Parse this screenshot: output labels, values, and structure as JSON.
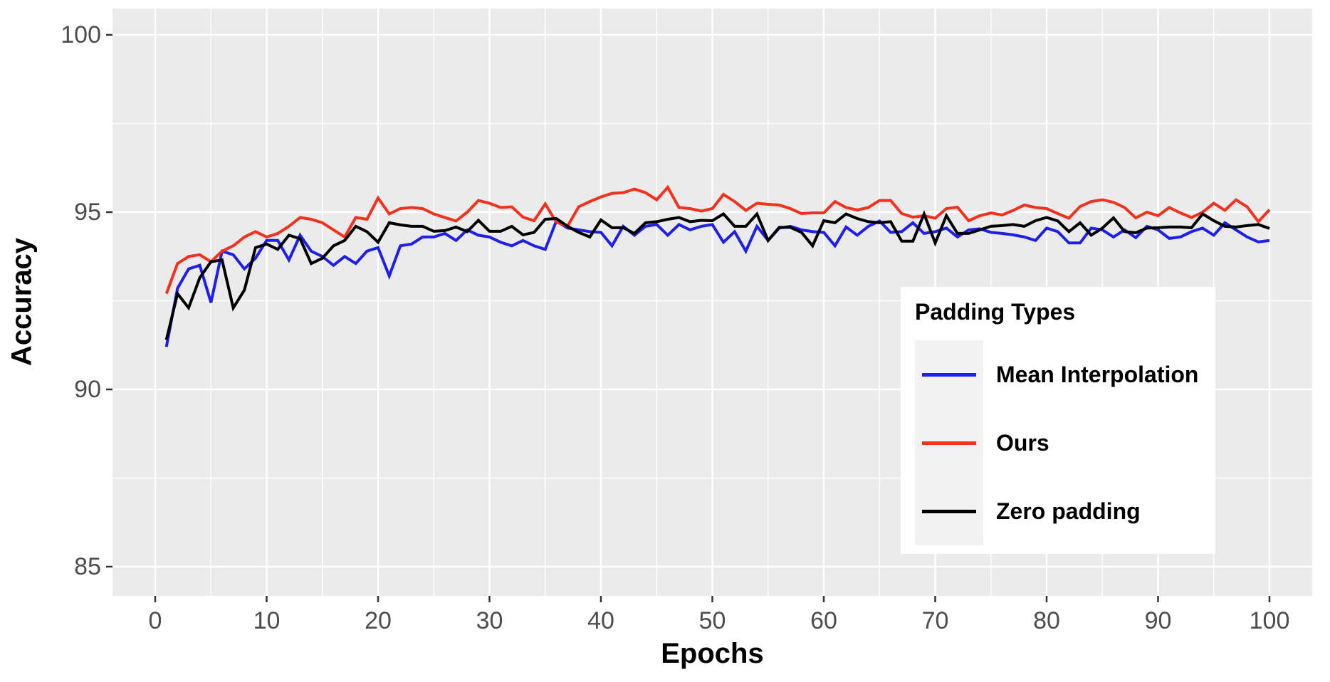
{
  "figure": {
    "background_color": "#ffffff",
    "panel_background_color": "#ebebeb",
    "grid_color": "#ffffff",
    "tick_label_color": "#4d4d4d",
    "axis_title_color": "#000000"
  },
  "legend": {
    "title": "Padding Types",
    "position": "inside-right",
    "background_color": "#ffffff",
    "key_background_color": "#f2f2f2",
    "items": [
      {
        "label": "Mean Interpolation",
        "color": "#1f1feb"
      },
      {
        "label": "Ours",
        "color": "#f5301d"
      },
      {
        "label": "Zero padding",
        "color": "#000000"
      }
    ]
  },
  "chart_data": {
    "type": "line",
    "title": "",
    "xlabel": "Epochs",
    "ylabel": "Accuracy",
    "xlim": [
      -3.8,
      103.8
    ],
    "ylim": [
      84.2,
      100.7
    ],
    "x_ticks": [
      0,
      10,
      20,
      30,
      40,
      50,
      60,
      70,
      80,
      90,
      100
    ],
    "y_ticks": [
      85,
      90,
      95,
      100
    ],
    "x_minor_ticks": [
      5,
      15,
      25,
      35,
      45,
      55,
      65,
      75,
      85,
      95
    ],
    "y_minor_ticks": [
      87.5,
      92.5,
      97.5
    ],
    "grid": true,
    "legend_position": "inside-right",
    "x": [
      1,
      2,
      3,
      4,
      5,
      6,
      7,
      8,
      9,
      10,
      11,
      12,
      13,
      14,
      15,
      16,
      17,
      18,
      19,
      20,
      21,
      22,
      23,
      24,
      25,
      26,
      27,
      28,
      29,
      30,
      31,
      32,
      33,
      34,
      35,
      36,
      37,
      38,
      39,
      40,
      41,
      42,
      43,
      44,
      45,
      46,
      47,
      48,
      49,
      50,
      51,
      52,
      53,
      54,
      55,
      56,
      57,
      58,
      59,
      60,
      61,
      62,
      63,
      64,
      65,
      66,
      67,
      68,
      69,
      70,
      71,
      72,
      73,
      74,
      75,
      76,
      77,
      78,
      79,
      80,
      81,
      82,
      83,
      84,
      85,
      86,
      87,
      88,
      89,
      90,
      91,
      92,
      93,
      94,
      95,
      96,
      97,
      98,
      99,
      100
    ],
    "series": [
      {
        "name": "Mean Interpolation",
        "color": "#1f1feb",
        "values": [
          91.2,
          92.85,
          93.4,
          93.5,
          92.45,
          93.9,
          93.8,
          93.4,
          93.7,
          94.2,
          94.2,
          93.65,
          94.35,
          93.9,
          93.75,
          93.5,
          93.75,
          93.55,
          93.9,
          94.0,
          93.2,
          94.05,
          94.1,
          94.3,
          94.3,
          94.4,
          94.2,
          94.5,
          94.35,
          94.3,
          94.15,
          94.05,
          94.2,
          94.05,
          93.95,
          94.75,
          94.55,
          94.5,
          94.45,
          94.43,
          94.05,
          94.6,
          94.35,
          94.6,
          94.65,
          94.35,
          94.65,
          94.5,
          94.6,
          94.65,
          94.15,
          94.45,
          93.9,
          94.6,
          94.2,
          94.55,
          94.6,
          94.5,
          94.45,
          94.43,
          94.05,
          94.58,
          94.35,
          94.6,
          94.75,
          94.43,
          94.45,
          94.7,
          94.4,
          94.45,
          94.55,
          94.3,
          94.5,
          94.53,
          94.43,
          94.4,
          94.36,
          94.3,
          94.2,
          94.55,
          94.45,
          94.13,
          94.13,
          94.55,
          94.5,
          94.3,
          94.5,
          94.28,
          94.6,
          94.5,
          94.26,
          94.3,
          94.45,
          94.55,
          94.35,
          94.7,
          94.5,
          94.3,
          94.16,
          94.2
        ]
      },
      {
        "name": "Ours",
        "color": "#f5301d",
        "values": [
          92.7,
          93.55,
          93.75,
          93.8,
          93.6,
          93.9,
          94.05,
          94.3,
          94.45,
          94.3,
          94.4,
          94.6,
          94.85,
          94.8,
          94.7,
          94.5,
          94.3,
          94.85,
          94.8,
          95.4,
          94.95,
          95.1,
          95.13,
          95.1,
          94.95,
          94.85,
          94.75,
          95.0,
          95.33,
          95.25,
          95.13,
          95.15,
          94.86,
          94.76,
          95.23,
          94.72,
          94.6,
          95.15,
          95.3,
          95.43,
          95.53,
          95.55,
          95.65,
          95.55,
          95.35,
          95.7,
          95.13,
          95.1,
          95.03,
          95.1,
          95.5,
          95.3,
          95.05,
          95.25,
          95.22,
          95.2,
          95.1,
          94.96,
          94.98,
          94.98,
          95.3,
          95.13,
          95.06,
          95.13,
          95.33,
          95.33,
          94.96,
          94.86,
          94.9,
          94.83,
          95.1,
          95.14,
          94.76,
          94.9,
          94.98,
          94.92,
          95.05,
          95.2,
          95.13,
          95.1,
          94.96,
          94.83,
          95.16,
          95.3,
          95.35,
          95.28,
          95.13,
          94.84,
          95.0,
          94.9,
          95.13,
          94.98,
          94.85,
          95.0,
          95.25,
          95.05,
          95.35,
          95.15,
          94.73,
          95.07
        ]
      },
      {
        "name": "Zero padding",
        "color": "#000000",
        "values": [
          91.4,
          92.7,
          92.3,
          93.15,
          93.6,
          93.65,
          92.3,
          92.8,
          94.0,
          94.1,
          93.95,
          94.35,
          94.25,
          93.55,
          93.7,
          94.05,
          94.2,
          94.6,
          94.45,
          94.15,
          94.7,
          94.64,
          94.6,
          94.6,
          94.46,
          94.48,
          94.58,
          94.45,
          94.77,
          94.46,
          94.46,
          94.6,
          94.36,
          94.43,
          94.8,
          94.82,
          94.6,
          94.43,
          94.3,
          94.78,
          94.56,
          94.56,
          94.4,
          94.7,
          94.73,
          94.8,
          94.85,
          94.73,
          94.77,
          94.76,
          94.95,
          94.6,
          94.6,
          94.95,
          94.2,
          94.57,
          94.57,
          94.43,
          94.05,
          94.76,
          94.7,
          94.95,
          94.82,
          94.73,
          94.7,
          94.73,
          94.18,
          94.18,
          94.95,
          94.13,
          94.9,
          94.4,
          94.4,
          94.5,
          94.6,
          94.62,
          94.65,
          94.6,
          94.76,
          94.85,
          94.75,
          94.45,
          94.7,
          94.35,
          94.55,
          94.84,
          94.45,
          94.42,
          94.55,
          94.56,
          94.58,
          94.58,
          94.56,
          94.95,
          94.76,
          94.6,
          94.58,
          94.62,
          94.65,
          94.54
        ]
      }
    ]
  }
}
